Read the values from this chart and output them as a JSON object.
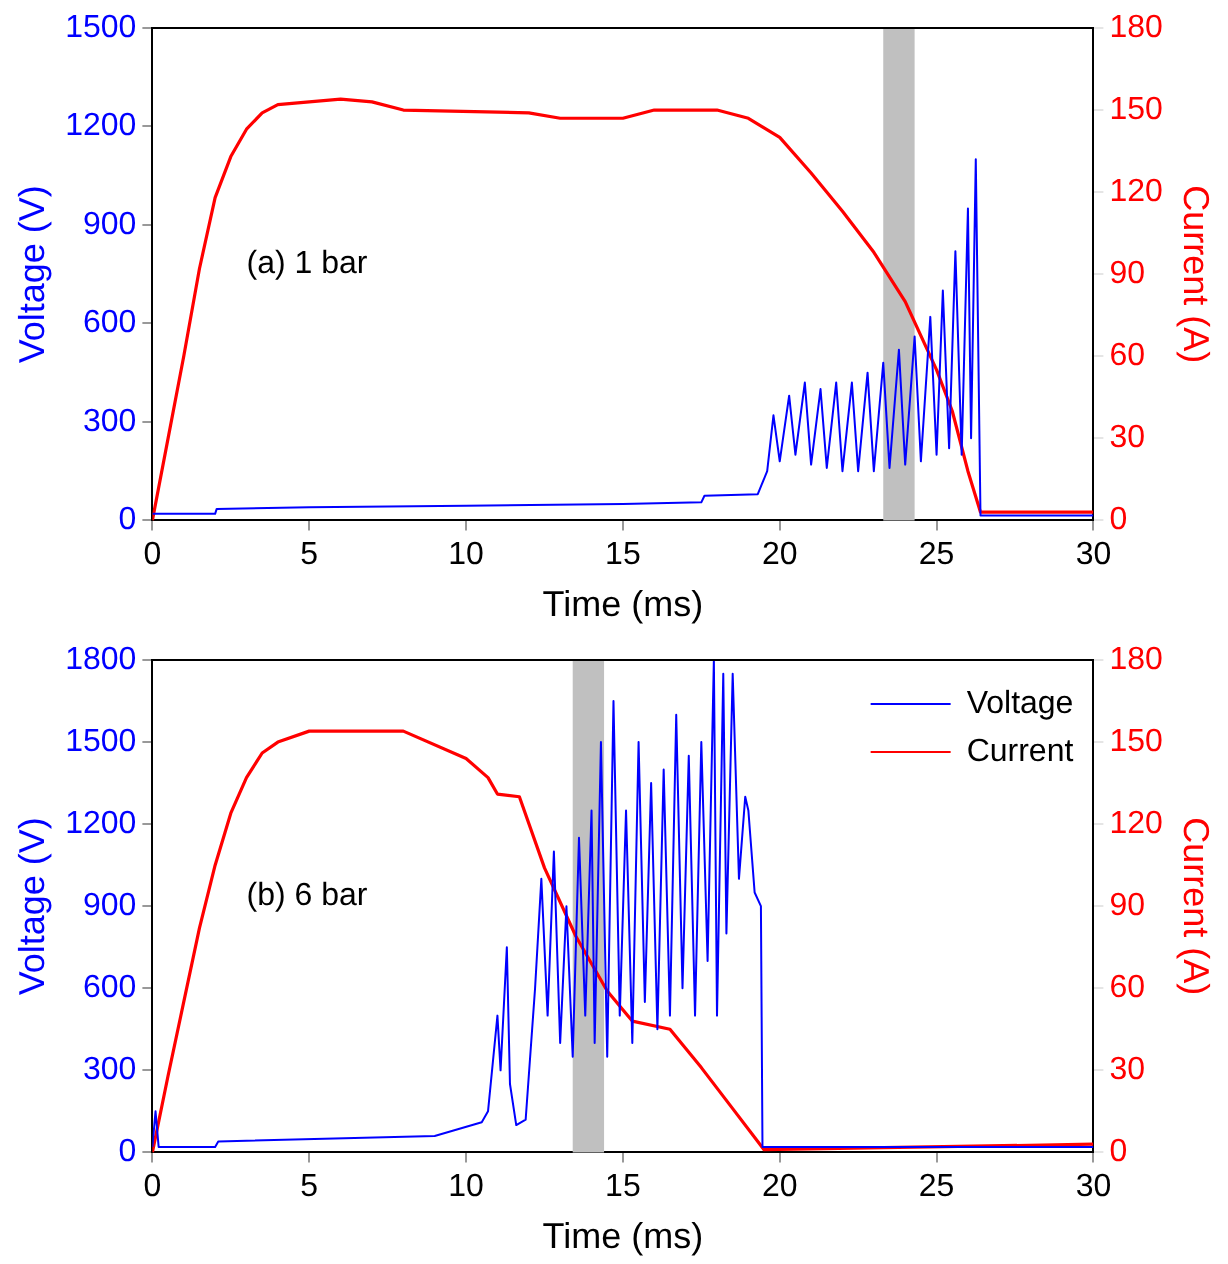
{
  "chart_data": [
    {
      "type": "line",
      "xlabel": "Time (ms)",
      "ylabel": "Voltage (V)",
      "y2label": "Current (A)",
      "annotations": [
        "(a) 1 bar"
      ],
      "xlim": [
        0,
        30
      ],
      "xticks": [
        0,
        5,
        10,
        15,
        20,
        25,
        30
      ],
      "ylim": [
        0,
        1500
      ],
      "yticks": [
        0,
        300,
        600,
        900,
        1200,
        1500
      ],
      "y2lim": [
        0,
        180
      ],
      "y2ticks": [
        0,
        30,
        60,
        90,
        120,
        150,
        180
      ],
      "grid": false,
      "marker": "none",
      "line_style": "solid",
      "bands": [
        {
          "axis": "x",
          "from": 23.3,
          "to": 24.3,
          "color": "#c0c0c0"
        }
      ],
      "series": [
        {
          "color": "#0000ff",
          "axis": "y",
          "x": [
            0,
            2,
            2.05,
            5,
            10,
            15,
            17.5,
            17.6,
            19.3,
            19.6,
            19.8,
            20.0,
            20.3,
            20.5,
            20.8,
            21.0,
            21.3,
            21.5,
            21.8,
            22.0,
            22.3,
            22.5,
            22.8,
            23.0,
            23.3,
            23.5,
            23.8,
            24.0,
            24.3,
            24.5,
            24.8,
            25.0,
            25.2,
            25.4,
            25.6,
            25.8,
            26.0,
            26.1,
            26.25,
            26.4,
            30
          ],
          "values": [
            20,
            20,
            35,
            40,
            45,
            50,
            55,
            75,
            80,
            150,
            320,
            180,
            380,
            200,
            420,
            170,
            400,
            160,
            420,
            150,
            420,
            150,
            450,
            150,
            480,
            160,
            520,
            170,
            560,
            180,
            620,
            200,
            700,
            220,
            820,
            200,
            950,
            250,
            1100,
            15,
            15
          ]
        },
        {
          "color": "#ff0000",
          "axis": "y2",
          "x": [
            0,
            0.5,
            1,
            1.5,
            2,
            2.5,
            3,
            3.5,
            4,
            6,
            7,
            8,
            12,
            13,
            15,
            16,
            18,
            19,
            20,
            21,
            22,
            23,
            24,
            25,
            25.5,
            26,
            26.4,
            30
          ],
          "values": [
            0,
            30,
            60,
            92,
            118,
            133,
            143,
            149,
            152,
            154,
            153,
            150,
            149,
            147,
            147,
            150,
            150,
            147,
            140,
            127,
            113,
            98,
            80,
            55,
            40,
            18,
            3,
            3
          ]
        }
      ]
    },
    {
      "type": "line",
      "xlabel": "Time (ms)",
      "ylabel": "Voltage (V)",
      "y2label": "Current (A)",
      "annotations": [
        "(b) 6 bar"
      ],
      "xlim": [
        0,
        30
      ],
      "xticks": [
        0,
        5,
        10,
        15,
        20,
        25,
        30
      ],
      "ylim": [
        0,
        1800
      ],
      "yticks": [
        0,
        300,
        600,
        900,
        1200,
        1500,
        1800
      ],
      "y2lim": [
        0,
        180
      ],
      "y2ticks": [
        0,
        30,
        60,
        90,
        120,
        150,
        180
      ],
      "grid": false,
      "marker": "none",
      "line_style": "solid",
      "legend": "top right",
      "bands": [
        {
          "axis": "x",
          "from": 13.4,
          "to": 14.4,
          "color": "#c0c0c0"
        }
      ],
      "series": [
        {
          "name": "Voltage",
          "color": "#0000ff",
          "axis": "y",
          "x": [
            0,
            0.1,
            0.2,
            2,
            2.1,
            9,
            10.5,
            10.7,
            11,
            11.1,
            11.3,
            11.4,
            11.6,
            11.9,
            12.2,
            12.4,
            12.6,
            12.8,
            13,
            13.2,
            13.4,
            13.6,
            13.8,
            14,
            14.1,
            14.3,
            14.5,
            14.7,
            14.9,
            15.1,
            15.3,
            15.5,
            15.7,
            15.9,
            16.1,
            16.3,
            16.5,
            16.7,
            16.9,
            17.1,
            17.3,
            17.5,
            17.7,
            17.9,
            18.0,
            18.2,
            18.3,
            18.5,
            18.7,
            18.9,
            19.0,
            19.2,
            19.4,
            19.45,
            30
          ],
          "values": [
            20,
            150,
            20,
            20,
            40,
            60,
            110,
            150,
            500,
            300,
            750,
            250,
            100,
            120,
            600,
            1000,
            500,
            1100,
            400,
            900,
            350,
            1150,
            500,
            1250,
            400,
            1500,
            350,
            1650,
            500,
            1250,
            400,
            1500,
            550,
            1350,
            450,
            1400,
            500,
            1600,
            600,
            1450,
            500,
            1500,
            700,
            1800,
            500,
            1750,
            800,
            1750,
            1000,
            1300,
            1250,
            950,
            900,
            20,
            20
          ]
        },
        {
          "name": "Current",
          "color": "#ff0000",
          "axis": "y2",
          "x": [
            0,
            0.5,
            1,
            1.5,
            2,
            2.5,
            3,
            3.5,
            4,
            5,
            8,
            10,
            10.7,
            11,
            11.7,
            12.5,
            13.5,
            14.5,
            15.3,
            16.5,
            17.5,
            18.5,
            19.5,
            30
          ],
          "values": [
            0,
            28,
            55,
            82,
            105,
            124,
            137,
            146,
            150,
            154,
            154,
            144,
            137,
            131,
            130,
            104,
            79,
            59,
            48,
            45,
            31,
            16,
            1,
            3
          ]
        }
      ]
    }
  ]
}
